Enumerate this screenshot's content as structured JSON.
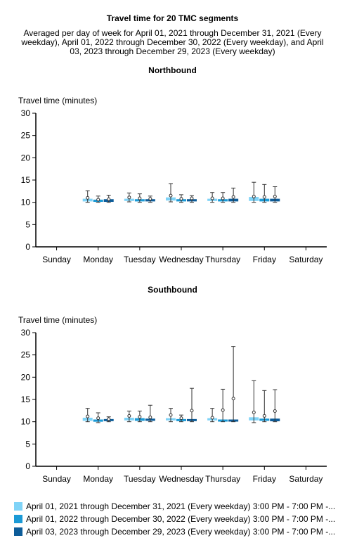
{
  "title": "Travel time for 20 TMC segments",
  "subtitle": "Averaged per day of week for April 01, 2021 through December 31, 2021 (Every weekday), April 01, 2022 through December 30, 2022 (Every weekday), and April 03, 2023 through December 29, 2023 (Every weekday)",
  "legend": [
    {
      "label": "April 01, 2021 through December 31, 2021 (Every weekday) 3:00 PM - 7:00 PM -...",
      "color": "#7fd3f7"
    },
    {
      "label": "April 01, 2022 through December 30, 2022 (Every weekday) 3:00 PM - 7:00 PM -...",
      "color": "#1b9ad6"
    },
    {
      "label": "April 03, 2023 through December 29, 2023 (Every weekday) 3:00 PM - 7:00 PM -...",
      "color": "#0d5c99"
    }
  ],
  "chart_data": [
    {
      "type": "box",
      "title": "Northbound",
      "ylabel": "Travel time (minutes)",
      "ylim": [
        0,
        30
      ],
      "yticks": [
        "0",
        "5",
        "10",
        "15",
        "20",
        "25",
        "30"
      ],
      "categories": [
        "Sunday",
        "Monday",
        "Tuesday",
        "Wednesday",
        "Thursday",
        "Friday",
        "Saturday"
      ],
      "series": [
        {
          "values": [
            null,
            {
              "low": 10.0,
              "box_low": 10.2,
              "box_high": 10.8,
              "mean": 11.0,
              "high": 12.6
            },
            {
              "low": 10.1,
              "box_low": 10.3,
              "box_high": 10.8,
              "mean": 11.1,
              "high": 12.1
            },
            {
              "low": 10.1,
              "box_low": 10.4,
              "box_high": 11.1,
              "mean": 11.5,
              "high": 14.2
            },
            {
              "low": 10.0,
              "box_low": 10.3,
              "box_high": 10.8,
              "mean": 10.9,
              "high": 12.2
            },
            {
              "low": 10.0,
              "box_low": 10.3,
              "box_high": 11.2,
              "mean": 11.3,
              "high": 14.5
            },
            null
          ]
        },
        {
          "values": [
            null,
            {
              "low": 10.0,
              "box_low": 10.1,
              "box_high": 10.6,
              "mean": 10.6,
              "high": 11.4
            },
            {
              "low": 10.0,
              "box_low": 10.2,
              "box_high": 10.7,
              "mean": 10.9,
              "high": 11.9
            },
            {
              "low": 10.0,
              "box_low": 10.2,
              "box_high": 10.7,
              "mean": 10.8,
              "high": 11.7
            },
            {
              "low": 10.0,
              "box_low": 10.2,
              "box_high": 10.7,
              "mean": 10.9,
              "high": 12.2
            },
            {
              "low": 10.0,
              "box_low": 10.2,
              "box_high": 10.8,
              "mean": 11.2,
              "high": 14.0
            },
            null
          ]
        },
        {
          "values": [
            null,
            {
              "low": 10.0,
              "box_low": 10.1,
              "box_high": 10.7,
              "mean": 10.7,
              "high": 11.6
            },
            {
              "low": 10.0,
              "box_low": 10.2,
              "box_high": 10.7,
              "mean": 10.8,
              "high": 11.4
            },
            {
              "low": 10.0,
              "box_low": 10.2,
              "box_high": 10.7,
              "mean": 10.9,
              "high": 11.5
            },
            {
              "low": 10.0,
              "box_low": 10.2,
              "box_high": 10.8,
              "mean": 11.2,
              "high": 13.2
            },
            {
              "low": 10.0,
              "box_low": 10.2,
              "box_high": 10.8,
              "mean": 11.3,
              "high": 13.5
            },
            null
          ]
        }
      ]
    },
    {
      "type": "box",
      "title": "Southbound",
      "ylabel": "Travel time (minutes)",
      "ylim": [
        0,
        30
      ],
      "yticks": [
        "0",
        "5",
        "10",
        "15",
        "20",
        "25",
        "30"
      ],
      "categories": [
        "Sunday",
        "Monday",
        "Tuesday",
        "Wednesday",
        "Thursday",
        "Friday",
        "Saturday"
      ],
      "series": [
        {
          "values": [
            null,
            {
              "low": 10.0,
              "box_low": 10.2,
              "box_high": 10.9,
              "mean": 11.2,
              "high": 13.0
            },
            {
              "low": 10.0,
              "box_low": 10.3,
              "box_high": 10.9,
              "mean": 11.3,
              "high": 12.4
            },
            {
              "low": 10.0,
              "box_low": 10.3,
              "box_high": 10.8,
              "mean": 11.5,
              "high": 13.0
            },
            {
              "low": 10.0,
              "box_low": 10.3,
              "box_high": 10.8,
              "mean": 10.9,
              "high": 13.0
            },
            {
              "low": 9.8,
              "box_low": 10.3,
              "box_high": 11.0,
              "mean": 12.1,
              "high": 19.2
            },
            null
          ]
        },
        {
          "values": [
            null,
            {
              "low": 9.8,
              "box_low": 10.0,
              "box_high": 10.5,
              "mean": 10.8,
              "high": 12.0
            },
            {
              "low": 10.0,
              "box_low": 10.2,
              "box_high": 10.8,
              "mean": 11.1,
              "high": 12.4
            },
            {
              "low": 10.0,
              "box_low": 10.2,
              "box_high": 10.6,
              "mean": 10.8,
              "high": 11.5
            },
            {
              "low": 10.0,
              "box_low": 10.1,
              "box_high": 10.5,
              "mean": 12.6,
              "high": 17.3
            },
            {
              "low": 10.0,
              "box_low": 10.2,
              "box_high": 10.7,
              "mean": 11.3,
              "high": 17.0
            },
            null
          ]
        },
        {
          "values": [
            null,
            {
              "low": 10.0,
              "box_low": 10.2,
              "box_high": 10.6,
              "mean": 10.6,
              "high": 11.1
            },
            {
              "low": 10.0,
              "box_low": 10.2,
              "box_high": 10.7,
              "mean": 11.0,
              "high": 13.7
            },
            {
              "low": 10.0,
              "box_low": 10.2,
              "box_high": 10.6,
              "mean": 12.5,
              "high": 17.5
            },
            {
              "low": 10.0,
              "box_low": 10.1,
              "box_high": 10.5,
              "mean": 15.2,
              "high": 26.9
            },
            {
              "low": 10.0,
              "box_low": 10.1,
              "box_high": 10.7,
              "mean": 12.4,
              "high": 17.2
            },
            null
          ]
        }
      ]
    }
  ]
}
